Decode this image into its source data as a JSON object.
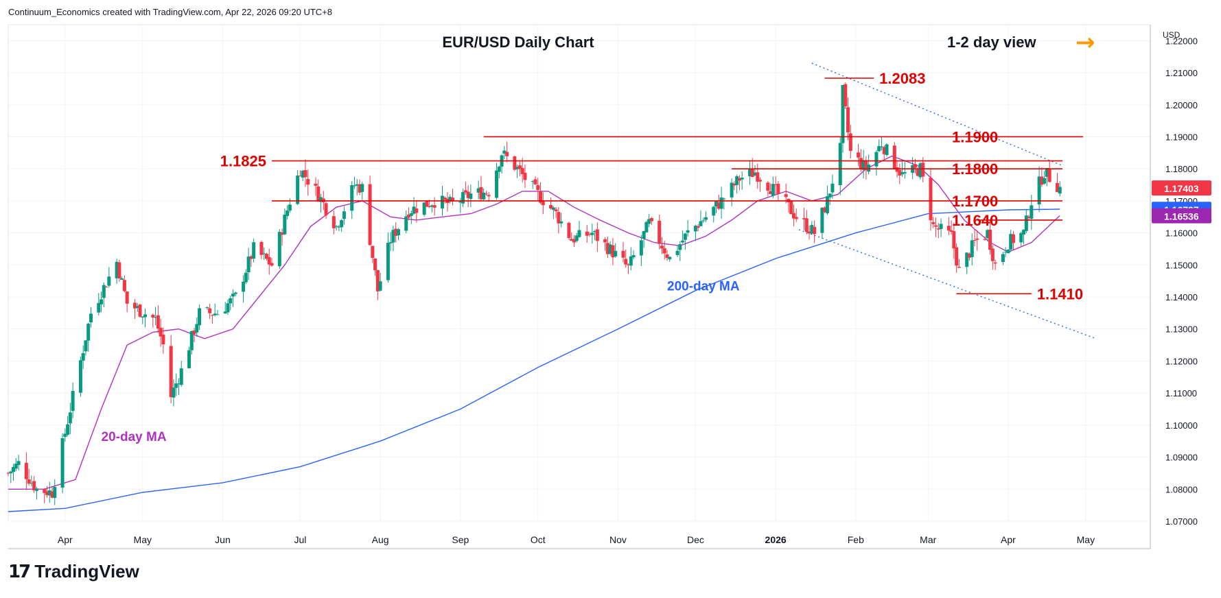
{
  "header": {
    "attribution": "Continuum_Economics created with TradingView.com, Apr 22, 2026 09:20 UTC+8"
  },
  "footer": {
    "brand": "TradingView"
  },
  "chart_data": {
    "type": "candlestick",
    "title": "EUR/USD Daily Chart",
    "view_label": "1-2 day view",
    "view_arrow": "→",
    "currency": "USD",
    "ylim": [
      1.07,
      1.225
    ],
    "y_ticks": [
      "1.07000",
      "1.08000",
      "1.09000",
      "1.10000",
      "1.11000",
      "1.12000",
      "1.13000",
      "1.14000",
      "1.15000",
      "1.16000",
      "1.17000",
      "1.18000",
      "1.19000",
      "1.20000",
      "1.21000",
      "1.22000"
    ],
    "x_months": [
      {
        "label": "Apr",
        "date": "2025-04-01"
      },
      {
        "label": "May",
        "date": "2025-05-01"
      },
      {
        "label": "Jun",
        "date": "2025-06-01"
      },
      {
        "label": "Jul",
        "date": "2025-07-01"
      },
      {
        "label": "Aug",
        "date": "2025-08-01"
      },
      {
        "label": "Sep",
        "date": "2025-09-01"
      },
      {
        "label": "Oct",
        "date": "2025-10-01"
      },
      {
        "label": "Nov",
        "date": "2025-11-01"
      },
      {
        "label": "Dec",
        "date": "2025-12-01"
      },
      {
        "label": "2026",
        "date": "2026-01-01",
        "bold": true
      },
      {
        "label": "Feb",
        "date": "2026-02-01"
      },
      {
        "label": "Mar",
        "date": "2026-03-01"
      },
      {
        "label": "Apr",
        "date": "2026-04-01"
      },
      {
        "label": "May",
        "date": "2026-05-01"
      }
    ],
    "x_range": [
      "2025-03-10",
      "2026-05-26"
    ],
    "close_path": [
      [
        "2025-03-10",
        1.085
      ],
      [
        "2025-03-14",
        1.088
      ],
      [
        "2025-03-21",
        1.08
      ],
      [
        "2025-03-27",
        1.079
      ],
      [
        "2025-04-03",
        1.105
      ],
      [
        "2025-04-11",
        1.135
      ],
      [
        "2025-04-21",
        1.151
      ],
      [
        "2025-04-25",
        1.138
      ],
      [
        "2025-05-06",
        1.133
      ],
      [
        "2025-05-09",
        1.125
      ],
      [
        "2025-05-12",
        1.109
      ],
      [
        "2025-05-16",
        1.117
      ],
      [
        "2025-05-23",
        1.135
      ],
      [
        "2025-05-30",
        1.135
      ],
      [
        "2025-06-06",
        1.14
      ],
      [
        "2025-06-13",
        1.155
      ],
      [
        "2025-06-20",
        1.15
      ],
      [
        "2025-06-27",
        1.17
      ],
      [
        "2025-07-01",
        1.18
      ],
      [
        "2025-07-08",
        1.172
      ],
      [
        "2025-07-15",
        1.162
      ],
      [
        "2025-07-22",
        1.175
      ],
      [
        "2025-07-25",
        1.174
      ],
      [
        "2025-07-31",
        1.142
      ],
      [
        "2025-08-05",
        1.158
      ],
      [
        "2025-08-12",
        1.167
      ],
      [
        "2025-08-22",
        1.17
      ],
      [
        "2025-08-29",
        1.169
      ],
      [
        "2025-09-05",
        1.172
      ],
      [
        "2025-09-12",
        1.173
      ],
      [
        "2025-09-17",
        1.185
      ],
      [
        "2025-09-23",
        1.18
      ],
      [
        "2025-09-30",
        1.173
      ],
      [
        "2025-10-08",
        1.166
      ],
      [
        "2025-10-14",
        1.158
      ],
      [
        "2025-10-22",
        1.16
      ],
      [
        "2025-10-30",
        1.154
      ],
      [
        "2025-11-05",
        1.149
      ],
      [
        "2025-11-13",
        1.163
      ],
      [
        "2025-11-21",
        1.152
      ],
      [
        "2025-11-28",
        1.16
      ],
      [
        "2025-12-05",
        1.165
      ],
      [
        "2025-12-11",
        1.17
      ],
      [
        "2025-12-18",
        1.177
      ],
      [
        "2025-12-24",
        1.179
      ],
      [
        "2026-01-02",
        1.172
      ],
      [
        "2026-01-09",
        1.165
      ],
      [
        "2026-01-16",
        1.16
      ],
      [
        "2026-01-21",
        1.17
      ],
      [
        "2026-01-26",
        1.186
      ],
      [
        "2026-01-27",
        1.204
      ],
      [
        "2026-01-30",
        1.185
      ],
      [
        "2026-02-05",
        1.18
      ],
      [
        "2026-02-11",
        1.188
      ],
      [
        "2026-02-19",
        1.178
      ],
      [
        "2026-02-26",
        1.18
      ],
      [
        "2026-03-03",
        1.162
      ],
      [
        "2026-03-10",
        1.159
      ],
      [
        "2026-03-13",
        1.148
      ],
      [
        "2026-03-19",
        1.157
      ],
      [
        "2026-03-24",
        1.16
      ],
      [
        "2026-03-27",
        1.15
      ],
      [
        "2026-04-01",
        1.157
      ],
      [
        "2026-04-07",
        1.16
      ],
      [
        "2026-04-10",
        1.17
      ],
      [
        "2026-04-15",
        1.179
      ],
      [
        "2026-04-21",
        1.174
      ]
    ],
    "series": [
      {
        "name": "20-day MA",
        "color": "#b031c0",
        "points": [
          [
            "2025-03-10",
            1.08
          ],
          [
            "2025-03-24",
            1.08
          ],
          [
            "2025-04-05",
            1.083
          ],
          [
            "2025-04-15",
            1.105
          ],
          [
            "2025-04-25",
            1.125
          ],
          [
            "2025-05-05",
            1.129
          ],
          [
            "2025-05-15",
            1.13
          ],
          [
            "2025-05-25",
            1.127
          ],
          [
            "2025-06-05",
            1.13
          ],
          [
            "2025-06-15",
            1.14
          ],
          [
            "2025-06-25",
            1.15
          ],
          [
            "2025-07-05",
            1.162
          ],
          [
            "2025-07-15",
            1.168
          ],
          [
            "2025-07-25",
            1.17
          ],
          [
            "2025-08-05",
            1.165
          ],
          [
            "2025-08-15",
            1.164
          ],
          [
            "2025-08-25",
            1.165
          ],
          [
            "2025-09-05",
            1.166
          ],
          [
            "2025-09-15",
            1.169
          ],
          [
            "2025-09-25",
            1.173
          ],
          [
            "2025-10-05",
            1.173
          ],
          [
            "2025-10-15",
            1.168
          ],
          [
            "2025-10-25",
            1.164
          ],
          [
            "2025-11-05",
            1.16
          ],
          [
            "2025-11-15",
            1.157
          ],
          [
            "2025-11-25",
            1.156
          ],
          [
            "2025-12-05",
            1.159
          ],
          [
            "2025-12-15",
            1.164
          ],
          [
            "2025-12-25",
            1.17
          ],
          [
            "2026-01-05",
            1.173
          ],
          [
            "2026-01-15",
            1.17
          ],
          [
            "2026-01-25",
            1.172
          ],
          [
            "2026-02-05",
            1.18
          ],
          [
            "2026-02-15",
            1.184
          ],
          [
            "2026-02-25",
            1.181
          ],
          [
            "2026-03-05",
            1.175
          ],
          [
            "2026-03-15",
            1.164
          ],
          [
            "2026-03-25",
            1.157
          ],
          [
            "2026-04-01",
            1.154
          ],
          [
            "2026-04-10",
            1.157
          ],
          [
            "2026-04-21",
            1.1654
          ]
        ]
      },
      {
        "name": "200-day MA",
        "color": "#2962ff",
        "points": [
          [
            "2025-03-10",
            1.073
          ],
          [
            "2025-04-01",
            1.074
          ],
          [
            "2025-05-01",
            1.079
          ],
          [
            "2025-06-01",
            1.082
          ],
          [
            "2025-07-01",
            1.087
          ],
          [
            "2025-08-01",
            1.095
          ],
          [
            "2025-09-01",
            1.105
          ],
          [
            "2025-10-01",
            1.118
          ],
          [
            "2025-11-01",
            1.13
          ],
          [
            "2025-12-01",
            1.142
          ],
          [
            "2026-01-01",
            1.152
          ],
          [
            "2026-02-01",
            1.16
          ],
          [
            "2026-03-01",
            1.166
          ],
          [
            "2026-04-01",
            1.1672
          ],
          [
            "2026-04-21",
            1.1674
          ]
        ]
      }
    ],
    "levels": [
      {
        "label": "1.2083",
        "value": 1.2083,
        "start": "2026-01-20",
        "end": "2026-02-08",
        "label_side": "right-near"
      },
      {
        "label": "1.1900",
        "value": 1.19,
        "start": "2025-09-10",
        "end": "2026-04-30",
        "label_side": "right"
      },
      {
        "label": "1.1825",
        "value": 1.1825,
        "start": "2025-06-20",
        "end": "2026-04-22",
        "label_side": "left"
      },
      {
        "label": "1.1800",
        "value": 1.18,
        "start": "2025-12-15",
        "end": "2026-04-22",
        "label_side": "right"
      },
      {
        "label": "1.1700",
        "value": 1.17,
        "start": "2025-06-20",
        "end": "2026-04-22",
        "label_side": "right"
      },
      {
        "label": "1.1640",
        "value": 1.164,
        "start": "2026-03-20",
        "end": "2026-04-22",
        "label_side": "right"
      },
      {
        "label": "1.1410",
        "value": 1.141,
        "start": "2026-03-12",
        "end": "2026-04-10",
        "label_side": "right-near"
      }
    ],
    "channel_lines": [
      {
        "from": [
          "2026-01-15",
          1.213
        ],
        "to": [
          "2026-04-22",
          1.181
        ]
      },
      {
        "from": [
          "2026-01-10",
          1.161
        ],
        "to": [
          "2026-05-05",
          1.127
        ]
      }
    ],
    "annotations": [
      {
        "text": "20-day MA",
        "color": "#b031c0",
        "at": [
          "2025-04-15",
          1.095
        ]
      },
      {
        "text": "200-day MA",
        "color": "#2962ff",
        "at": [
          "2025-11-20",
          1.142
        ]
      }
    ],
    "price_badges": [
      {
        "label": "1.17403",
        "value": 1.17403,
        "color": "#f23645"
      },
      {
        "label": "1.16737",
        "value": 1.16737,
        "color": "#2962ff"
      },
      {
        "label": "1.16536",
        "value": 1.16536,
        "color": "#9c27b0"
      }
    ],
    "colors": {
      "up": "#089981",
      "down": "#f23645",
      "level": "#e00000",
      "grid": "#f0f3fa",
      "axis": "#131722",
      "arrow": "#ff9800"
    },
    "grid": true
  }
}
